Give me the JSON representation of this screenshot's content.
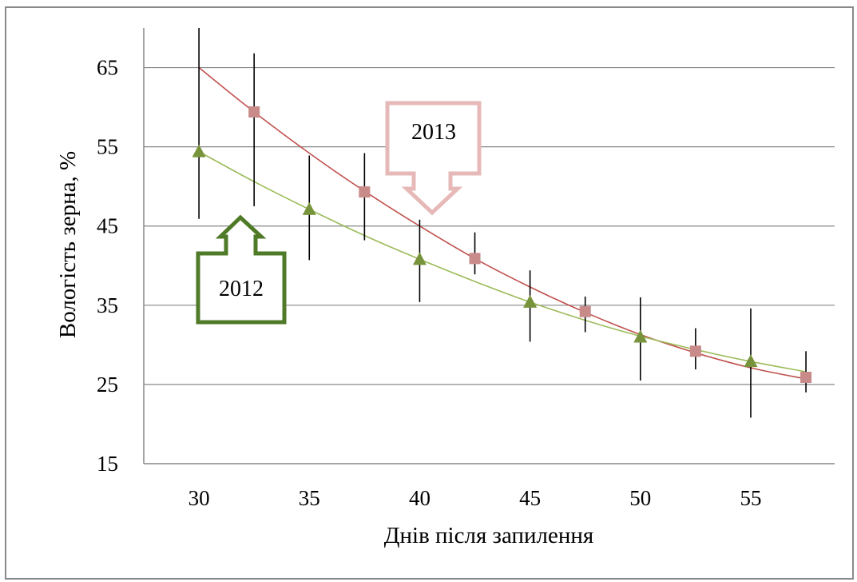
{
  "chart_data": {
    "type": "scatter",
    "title": "",
    "xlabel": "Днів після запилення",
    "ylabel": "Вологість зерна, %",
    "xlim": [
      27.5,
      58.8
    ],
    "ylim": [
      15,
      70
    ],
    "x_ticks": [
      "30",
      "35",
      "40",
      "45",
      "50",
      "55"
    ],
    "y_ticks": [
      "15",
      "25",
      "35",
      "45",
      "55",
      "65"
    ],
    "grid": {
      "horizontal": true,
      "vertical": false
    },
    "legend": "none",
    "series": [
      {
        "name": "2013",
        "marker": "square",
        "color": "#c98a8a",
        "trend_color": "#c0504d",
        "points": [
          {
            "x": 32.5,
            "y": 59.4,
            "err_low": 47.5,
            "err_high": 66.8
          },
          {
            "x": 37.5,
            "y": 49.3,
            "err_low": 43.2,
            "err_high": 54.2
          },
          {
            "x": 42.5,
            "y": 40.9,
            "err_low": 38.9,
            "err_high": 44.2
          },
          {
            "x": 47.5,
            "y": 34.2,
            "err_low": 31.6,
            "err_high": 36.1
          },
          {
            "x": 52.5,
            "y": 29.2,
            "err_low": 26.9,
            "err_high": 32.1
          },
          {
            "x": 57.5,
            "y": 25.9,
            "err_low": 24.0,
            "err_high": 29.2
          }
        ],
        "trend": {
          "x": [
            30,
            32.5,
            35,
            37.5,
            40,
            42.5,
            45,
            47.5,
            50,
            52.5,
            55,
            57.5
          ],
          "y": [
            65.0,
            59.4,
            54.2,
            49.4,
            45.0,
            40.9,
            37.3,
            34.1,
            31.3,
            29.0,
            27.1,
            25.7
          ]
        }
      },
      {
        "name": "2012",
        "marker": "triangle",
        "color": "#77933c",
        "trend_color": "#9bbb59",
        "points": [
          {
            "x": 30,
            "y": 54.4,
            "err_low": 45.9,
            "err_high": 70.0
          },
          {
            "x": 35,
            "y": 47.1,
            "err_low": 40.7,
            "err_high": 53.9
          },
          {
            "x": 40,
            "y": 40.8,
            "err_low": 35.4,
            "err_high": 45.8
          },
          {
            "x": 45,
            "y": 35.4,
            "err_low": 30.4,
            "err_high": 39.4
          },
          {
            "x": 50,
            "y": 31.0,
            "err_low": 25.5,
            "err_high": 36.0
          },
          {
            "x": 55,
            "y": 27.9,
            "err_low": 20.8,
            "err_high": 34.6
          }
        ],
        "trend": {
          "x": [
            30,
            32.5,
            35,
            37.5,
            40,
            42.5,
            45,
            47.5,
            50,
            52.5,
            55,
            57.5
          ],
          "y": [
            54.4,
            50.6,
            47.1,
            43.8,
            40.8,
            38.0,
            35.4,
            33.1,
            31.1,
            29.4,
            27.9,
            26.6
          ]
        }
      }
    ],
    "annotations": [
      {
        "text": "2013",
        "shape": "down-arrow-callout",
        "color": "#e6b9b8"
      },
      {
        "text": "2012",
        "shape": "up-arrow-callout",
        "color": "#4f7a28"
      }
    ]
  }
}
